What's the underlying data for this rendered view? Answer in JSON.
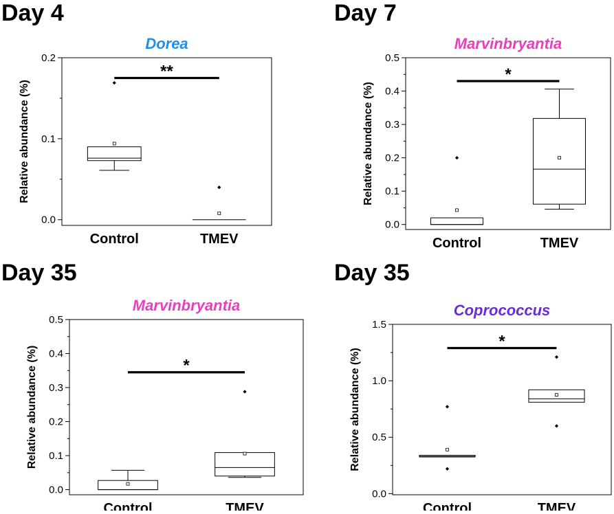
{
  "chart_data": [
    {
      "type": "box",
      "panel_label": "Day 4",
      "title": "Dorea",
      "title_color": "#1E90E8",
      "ylabel": "Relative abundance (%)",
      "xlabel": "",
      "categories": [
        "Control",
        "TMEV"
      ],
      "ylim": [
        -0.007,
        0.2
      ],
      "yticks": [
        0.0,
        0.1,
        0.2
      ],
      "ytick_labels": [
        "0.0",
        "0.1",
        "0.2"
      ],
      "boxes": [
        {
          "name": "Control",
          "whisker_low": 0.061,
          "q1": 0.073,
          "median": 0.076,
          "q3": 0.09,
          "whisker_high": 0.09,
          "mean": 0.094,
          "outliers": [
            0.169
          ]
        },
        {
          "name": "TMEV",
          "whisker_low": 0.0,
          "q1": 0.0,
          "median": 0.0,
          "q3": 0.0,
          "whisker_high": 0.0,
          "mean": 0.008,
          "outliers": [
            0.04
          ]
        }
      ],
      "significance": {
        "label": "**",
        "y": 0.175
      }
    },
    {
      "type": "box",
      "panel_label": "Day 7",
      "title": "Marvinbryantia",
      "title_color": "#E83FBF",
      "ylabel": "Relative abundance (%)",
      "xlabel": "",
      "categories": [
        "Control",
        "TMEV"
      ],
      "ylim": [
        -0.015,
        0.5
      ],
      "yticks": [
        0.0,
        0.1,
        0.2,
        0.3,
        0.4,
        0.5
      ],
      "ytick_labels": [
        "0.0",
        "0.1",
        "0.2",
        "0.3",
        "0.4",
        "0.5"
      ],
      "boxes": [
        {
          "name": "Control",
          "whisker_low": 0.0,
          "q1": 0.0,
          "median": 0.0,
          "q3": 0.02,
          "whisker_high": 0.02,
          "mean": 0.043,
          "outliers": [
            0.2
          ]
        },
        {
          "name": "TMEV",
          "whisker_low": 0.046,
          "q1": 0.061,
          "median": 0.166,
          "q3": 0.318,
          "whisker_high": 0.406,
          "mean": 0.2,
          "outliers": []
        }
      ],
      "significance": {
        "label": "*",
        "y": 0.43
      }
    },
    {
      "type": "box",
      "panel_label": "Day 35",
      "title": "Marvinbryantia",
      "title_color": "#E83FBF",
      "ylabel": "Relative abundance (%)",
      "xlabel": "",
      "categories": [
        "Control",
        "TMEV"
      ],
      "ylim": [
        -0.015,
        0.5
      ],
      "yticks": [
        0.0,
        0.1,
        0.2,
        0.3,
        0.4,
        0.5
      ],
      "ytick_labels": [
        "0.0",
        "0.1",
        "0.2",
        "0.3",
        "0.4",
        "0.5"
      ],
      "boxes": [
        {
          "name": "Control",
          "whisker_low": 0.0,
          "q1": 0.0,
          "median": 0.0,
          "q3": 0.027,
          "whisker_high": 0.057,
          "mean": 0.017,
          "outliers": []
        },
        {
          "name": "TMEV",
          "whisker_low": 0.036,
          "q1": 0.04,
          "median": 0.065,
          "q3": 0.109,
          "whisker_high": 0.109,
          "mean": 0.106,
          "outliers": [
            0.288
          ]
        }
      ],
      "significance": {
        "label": "*",
        "y": 0.345
      }
    },
    {
      "type": "box",
      "panel_label": "Day 35",
      "title": "Coprococcus",
      "title_color": "#6A2BD9",
      "ylabel": "Relative abundance (%)",
      "xlabel": "",
      "categories": [
        "Control",
        "TMEV"
      ],
      "ylim": [
        -0.01,
        1.5
      ],
      "yticks": [
        0.0,
        0.5,
        1.0,
        1.5
      ],
      "ytick_labels": [
        "0.0",
        "0.5",
        "1.0",
        "1.5"
      ],
      "boxes": [
        {
          "name": "Control",
          "whisker_low": 0.325,
          "q1": 0.325,
          "median": 0.33,
          "q3": 0.34,
          "whisker_high": 0.34,
          "mean": 0.39,
          "outliers": [
            0.22,
            0.77
          ]
        },
        {
          "name": "TMEV",
          "whisker_low": 0.81,
          "q1": 0.81,
          "median": 0.84,
          "q3": 0.92,
          "whisker_high": 0.92,
          "mean": 0.875,
          "outliers": [
            0.6,
            1.21
          ]
        }
      ],
      "significance": {
        "label": "*",
        "y": 1.29
      }
    }
  ]
}
